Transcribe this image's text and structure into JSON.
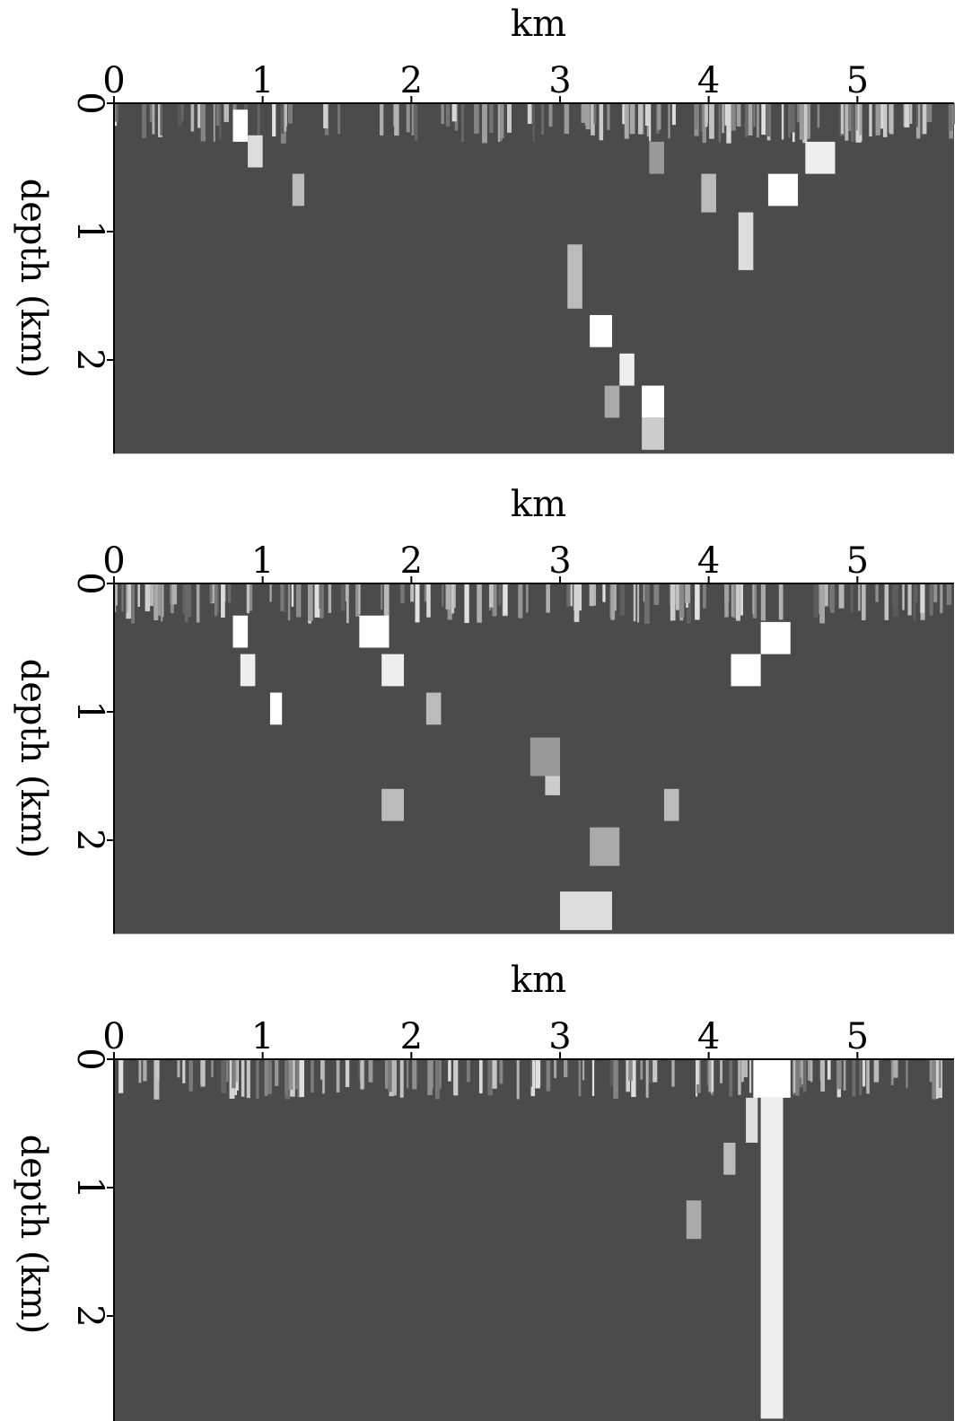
{
  "chart_data": [
    {
      "type": "image",
      "xlabel": "km",
      "ylabel": "depth (km)",
      "xlim": [
        0,
        5.65
      ],
      "ylim": [
        0,
        2.73
      ],
      "xticks": [
        0,
        1,
        2,
        3,
        4,
        5
      ],
      "yticks": [
        0,
        1,
        2
      ]
    },
    {
      "type": "image",
      "xlabel": "km",
      "ylabel": "depth (km)",
      "xlim": [
        0,
        5.65
      ],
      "ylim": [
        0,
        2.73
      ],
      "xticks": [
        0,
        1,
        2,
        3,
        4,
        5
      ],
      "yticks": [
        0,
        1,
        2
      ]
    },
    {
      "type": "image",
      "xlabel": "km",
      "ylabel": "depth (km)",
      "xlim": [
        0,
        5.65
      ],
      "ylim": [
        0,
        2.82
      ],
      "xticks": [
        0,
        1,
        2,
        3,
        4,
        5
      ],
      "yticks": [
        0,
        1,
        2
      ]
    }
  ]
}
